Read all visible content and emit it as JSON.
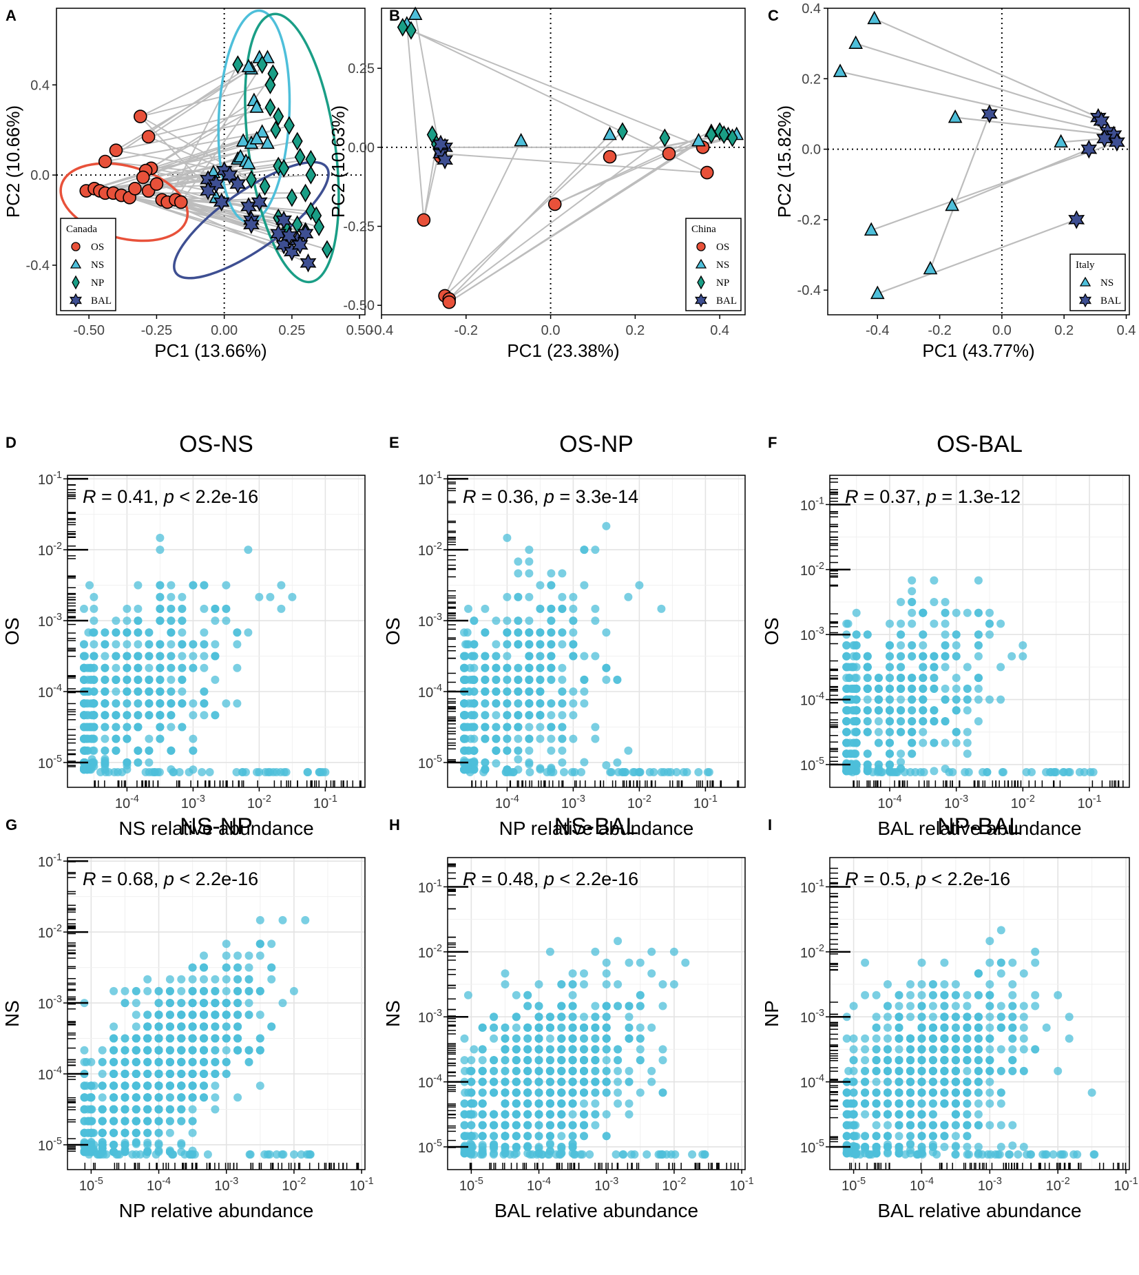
{
  "colors": {
    "OS": "#e8513a",
    "NS": "#4ebfda",
    "NP": "#1a9e86",
    "BAL": "#3e4f92",
    "scatter": "#4ebfda",
    "connector": "#bdbdbd"
  },
  "chart_data": [
    {
      "type": "scatter",
      "panel": "A",
      "xlabel": "PC1 (13.66%)",
      "ylabel": "PC2 (10.66%)",
      "xlim": [
        -0.62,
        0.52
      ],
      "ylim": [
        -0.62,
        0.74
      ],
      "xticks": [
        -0.5,
        -0.25,
        0.0,
        0.25,
        0.5
      ],
      "xtick_labels": [
        "-0.50",
        "-0.25",
        "0.00",
        "0.25",
        "0.50"
      ],
      "yticks": [
        -0.4,
        0.0,
        0.4
      ],
      "ytick_labels": [
        "-0.4",
        "0.0",
        "0.4"
      ],
      "legend": {
        "title": "Canada",
        "entries": [
          "OS",
          "NS",
          "NP",
          "BAL"
        ],
        "position": "bottom-left"
      },
      "ellipses": [
        {
          "group": "OS",
          "center": [
            -0.37,
            -0.12
          ],
          "rx": 0.24,
          "ry": 0.16,
          "angle": 15
        },
        {
          "group": "NS",
          "center": [
            0.11,
            0.26
          ],
          "rx": 0.13,
          "ry": 0.47,
          "angle": 3
        },
        {
          "group": "NP",
          "center": [
            0.25,
            0.12
          ],
          "rx": 0.16,
          "ry": 0.6,
          "angle": -8
        },
        {
          "group": "BAL",
          "center": [
            0.1,
            -0.2
          ],
          "rx": 0.34,
          "ry": 0.13,
          "angle": -35
        }
      ],
      "series": [
        {
          "name": "OS",
          "shape": "circle",
          "points": [
            [
              -0.31,
              0.26
            ],
            [
              -0.28,
              0.17
            ],
            [
              -0.4,
              0.11
            ],
            [
              -0.44,
              0.06
            ],
            [
              -0.27,
              0.03
            ],
            [
              -0.29,
              0.02
            ],
            [
              -0.3,
              -0.01
            ],
            [
              -0.51,
              -0.07
            ],
            [
              -0.48,
              -0.06
            ],
            [
              -0.46,
              -0.07
            ],
            [
              -0.44,
              -0.08
            ],
            [
              -0.41,
              -0.08
            ],
            [
              -0.38,
              -0.09
            ],
            [
              -0.35,
              -0.1
            ],
            [
              -0.33,
              -0.06
            ],
            [
              -0.28,
              -0.07
            ],
            [
              -0.25,
              -0.04
            ],
            [
              -0.23,
              -0.11
            ],
            [
              -0.21,
              -0.12
            ],
            [
              -0.18,
              -0.11
            ],
            [
              -0.16,
              -0.12
            ]
          ]
        },
        {
          "name": "NS",
          "shape": "triangle",
          "points": [
            [
              0.13,
              0.52
            ],
            [
              0.16,
              0.52
            ],
            [
              0.1,
              0.47
            ],
            [
              0.09,
              0.48
            ],
            [
              0.11,
              0.33
            ],
            [
              0.12,
              0.3
            ],
            [
              0.14,
              0.19
            ],
            [
              0.07,
              0.15
            ],
            [
              0.1,
              0.14
            ],
            [
              0.12,
              0.16
            ],
            [
              0.16,
              0.14
            ],
            [
              0.05,
              0.07
            ],
            [
              0.06,
              0.08
            ],
            [
              0.08,
              0.06
            ],
            [
              0.09,
              0.05
            ],
            [
              0.02,
              0.0
            ],
            [
              -0.04,
              0.01
            ],
            [
              -0.03,
              -0.1
            ]
          ]
        },
        {
          "name": "NP",
          "shape": "diamond",
          "points": [
            [
              0.05,
              0.49
            ],
            [
              0.14,
              0.49
            ],
            [
              0.18,
              0.45
            ],
            [
              0.17,
              0.4
            ],
            [
              0.17,
              0.3
            ],
            [
              0.2,
              0.26
            ],
            [
              0.19,
              0.2
            ],
            [
              0.24,
              0.22
            ],
            [
              0.27,
              0.15
            ],
            [
              0.28,
              0.08
            ],
            [
              0.32,
              0.07
            ],
            [
              0.32,
              0.0
            ],
            [
              0.2,
              0.04
            ],
            [
              0.22,
              0.03
            ],
            [
              0.3,
              -0.08
            ],
            [
              0.32,
              -0.16
            ],
            [
              0.27,
              -0.22
            ],
            [
              0.3,
              -0.25
            ],
            [
              0.34,
              -0.18
            ],
            [
              0.35,
              -0.23
            ],
            [
              0.38,
              -0.33
            ],
            [
              0.2,
              -0.19
            ],
            [
              0.23,
              -0.24
            ],
            [
              0.25,
              -0.1
            ],
            [
              0.1,
              -0.02
            ],
            [
              0.15,
              -0.05
            ]
          ]
        },
        {
          "name": "BAL",
          "shape": "star",
          "points": [
            [
              0.0,
              0.02
            ],
            [
              0.02,
              0.0
            ],
            [
              -0.06,
              -0.02
            ],
            [
              -0.03,
              -0.04
            ],
            [
              -0.06,
              -0.07
            ],
            [
              0.05,
              -0.04
            ],
            [
              0.09,
              -0.14
            ],
            [
              0.1,
              -0.2
            ],
            [
              0.1,
              -0.22
            ],
            [
              0.2,
              -0.26
            ],
            [
              0.22,
              -0.31
            ],
            [
              0.25,
              -0.34
            ],
            [
              0.27,
              -0.29
            ],
            [
              0.24,
              -0.27
            ],
            [
              0.3,
              -0.26
            ],
            [
              0.28,
              -0.31
            ],
            [
              0.31,
              -0.39
            ],
            [
              0.13,
              -0.12
            ],
            [
              0.22,
              -0.2
            ],
            [
              -0.01,
              -0.12
            ]
          ]
        }
      ]
    },
    {
      "type": "scatter",
      "panel": "B",
      "xlabel": "PC1 (23.38%)",
      "ylabel": "PC2 (10.63%)",
      "xlim": [
        -0.4,
        0.46
      ],
      "ylim": [
        -0.53,
        0.44
      ],
      "xticks": [
        -0.4,
        -0.2,
        0.0,
        0.2,
        0.4
      ],
      "xtick_labels": [
        "-0.4",
        "-0.2",
        "0.0",
        "0.2",
        "0.4"
      ],
      "yticks": [
        -0.5,
        -0.25,
        0.0,
        0.25
      ],
      "ytick_labels": [
        "-0.50",
        "-0.25",
        "0.00",
        "0.25"
      ],
      "legend": {
        "title": "China",
        "entries": [
          "OS",
          "NS",
          "NP",
          "BAL"
        ],
        "position": "bottom-right"
      },
      "series": [
        {
          "name": "OS",
          "shape": "circle",
          "points": [
            [
              -0.26,
              -0.03
            ],
            [
              -0.3,
              -0.23
            ],
            [
              -0.25,
              -0.47
            ],
            [
              -0.24,
              -0.48
            ],
            [
              -0.24,
              -0.49
            ],
            [
              0.01,
              -0.18
            ],
            [
              0.14,
              -0.03
            ],
            [
              0.28,
              -0.02
            ],
            [
              0.36,
              0.0
            ],
            [
              0.37,
              -0.08
            ]
          ]
        },
        {
          "name": "NS",
          "shape": "triangle",
          "points": [
            [
              -0.32,
              0.42
            ],
            [
              -0.34,
              0.39
            ],
            [
              -0.07,
              0.02
            ],
            [
              0.14,
              0.04
            ],
            [
              0.35,
              0.02
            ],
            [
              0.38,
              0.05
            ],
            [
              0.42,
              0.04
            ],
            [
              0.44,
              0.04
            ]
          ]
        },
        {
          "name": "NP",
          "shape": "diamond",
          "points": [
            [
              -0.35,
              0.38
            ],
            [
              -0.33,
              0.37
            ],
            [
              -0.28,
              0.04
            ],
            [
              -0.27,
              0.01
            ],
            [
              0.17,
              0.05
            ],
            [
              0.27,
              0.03
            ],
            [
              0.38,
              0.04
            ],
            [
              0.4,
              0.05
            ],
            [
              0.41,
              0.04
            ],
            [
              0.43,
              0.03
            ]
          ]
        },
        {
          "name": "BAL",
          "shape": "star",
          "points": [
            [
              -0.25,
              0.0
            ],
            [
              -0.26,
              -0.02
            ],
            [
              -0.25,
              -0.04
            ],
            [
              -0.26,
              0.01
            ]
          ]
        }
      ]
    },
    {
      "type": "scatter",
      "panel": "C",
      "xlabel": "PC1 (43.77%)",
      "ylabel": "PC2 (15.82%)",
      "xlim": [
        -0.56,
        0.41
      ],
      "ylim": [
        -0.47,
        0.4
      ],
      "xticks": [
        -0.4,
        -0.2,
        0.0,
        0.2,
        0.4
      ],
      "xtick_labels": [
        "-0.4",
        "-0.2",
        "0.0",
        "0.2",
        "0.4"
      ],
      "yticks": [
        -0.4,
        -0.2,
        0.0,
        0.2,
        0.4
      ],
      "ytick_labels": [
        "-0.4",
        "-0.2",
        "0.0",
        "0.2",
        "0.4"
      ],
      "legend": {
        "title": "Italy",
        "entries": [
          "NS",
          "BAL"
        ],
        "position": "bottom-right"
      },
      "pairs": [
        [
          0,
          0
        ],
        [
          1,
          1
        ],
        [
          2,
          2
        ],
        [
          3,
          3
        ],
        [
          4,
          4
        ],
        [
          5,
          5
        ],
        [
          6,
          6
        ],
        [
          7,
          7
        ],
        [
          8,
          8
        ]
      ],
      "series": [
        {
          "name": "NS",
          "shape": "triangle",
          "points": [
            [
              -0.41,
              0.37
            ],
            [
              -0.47,
              0.3
            ],
            [
              -0.52,
              0.22
            ],
            [
              -0.15,
              0.09
            ],
            [
              0.19,
              0.02
            ],
            [
              -0.16,
              -0.16
            ],
            [
              -0.42,
              -0.23
            ],
            [
              -0.23,
              -0.34
            ],
            [
              -0.4,
              -0.41
            ]
          ]
        },
        {
          "name": "BAL",
          "shape": "star",
          "points": [
            [
              0.31,
              0.09
            ],
            [
              0.32,
              0.08
            ],
            [
              0.34,
              0.05
            ],
            [
              0.36,
              0.04
            ],
            [
              0.33,
              0.03
            ],
            [
              0.28,
              0.0
            ],
            [
              0.37,
              0.02
            ],
            [
              -0.04,
              0.1
            ],
            [
              0.24,
              -0.2
            ]
          ]
        }
      ]
    },
    {
      "type": "scatter",
      "panel": "D",
      "title": "OS-NS",
      "xlabel": "NS relative abundance",
      "ylabel": "OS",
      "stat": {
        "r": "R = 0.41,",
        "p": "p < 2.2e-16"
      },
      "xlog_range": [
        -4.9,
        -0.4
      ],
      "ylog_range": [
        -5.35,
        -0.95
      ],
      "xticks_exp": [
        -4,
        -3,
        -2,
        -1
      ],
      "yticks_exp": [
        -5,
        -4,
        -3,
        -2,
        -1
      ],
      "n_points": 520,
      "correlation": 0.41,
      "seed": 11
    },
    {
      "type": "scatter",
      "panel": "E",
      "title": "OS-NP",
      "xlabel": "NP relative abundance",
      "ylabel": "OS",
      "stat": {
        "r": "R = 0.36,",
        "p": "p = 3.3e-14"
      },
      "xlog_range": [
        -4.9,
        -0.4
      ],
      "ylog_range": [
        -5.35,
        -0.95
      ],
      "xticks_exp": [
        -4,
        -3,
        -2,
        -1
      ],
      "yticks_exp": [
        -5,
        -4,
        -3,
        -2,
        -1
      ],
      "n_points": 480,
      "correlation": 0.36,
      "seed": 23
    },
    {
      "type": "scatter",
      "panel": "F",
      "title": "OS-BAL",
      "xlabel": "BAL relative abundance",
      "ylabel": "OS",
      "stat": {
        "r": "R = 0.37,",
        "p": "p = 1.3e-12"
      },
      "xlog_range": [
        -4.9,
        -0.4
      ],
      "ylog_range": [
        -5.35,
        -0.55
      ],
      "xticks_exp": [
        -4,
        -3,
        -2,
        -1
      ],
      "yticks_exp": [
        -5,
        -4,
        -3,
        -2,
        -1
      ],
      "n_points": 480,
      "correlation": 0.37,
      "seed": 37
    },
    {
      "type": "scatter",
      "panel": "G",
      "title": "NS-NP",
      "xlabel": "NP relative abundance",
      "ylabel": "NS",
      "stat": {
        "r": "R = 0.68,",
        "p": "p < 2.2e-16"
      },
      "xlog_range": [
        -5.35,
        -0.95
      ],
      "ylog_range": [
        -5.35,
        -0.95
      ],
      "xticks_exp": [
        -5,
        -4,
        -3,
        -2,
        -1
      ],
      "yticks_exp": [
        -5,
        -4,
        -3,
        -2,
        -1
      ],
      "n_points": 900,
      "correlation": 0.68,
      "seed": 41
    },
    {
      "type": "scatter",
      "panel": "H",
      "title": "NS-BAL",
      "xlabel": "BAL relative abundance",
      "ylabel": "NS",
      "stat": {
        "r": "R = 0.48,",
        "p": "p < 2.2e-16"
      },
      "xlog_range": [
        -5.35,
        -0.95
      ],
      "ylog_range": [
        -5.35,
        -0.55
      ],
      "xticks_exp": [
        -5,
        -4,
        -3,
        -2,
        -1
      ],
      "yticks_exp": [
        -5,
        -4,
        -3,
        -2,
        -1
      ],
      "n_points": 800,
      "correlation": 0.48,
      "seed": 53
    },
    {
      "type": "scatter",
      "panel": "I",
      "title": "NP-BAL",
      "xlabel": "BAL relative abundance",
      "ylabel": "NP",
      "stat": {
        "r": "R = 0.5,",
        "p": "p < 2.2e-16"
      },
      "xlog_range": [
        -5.35,
        -0.95
      ],
      "ylog_range": [
        -5.35,
        -0.55
      ],
      "xticks_exp": [
        -5,
        -4,
        -3,
        -2,
        -1
      ],
      "yticks_exp": [
        -5,
        -4,
        -3,
        -2,
        -1
      ],
      "n_points": 800,
      "correlation": 0.5,
      "seed": 67
    }
  ]
}
